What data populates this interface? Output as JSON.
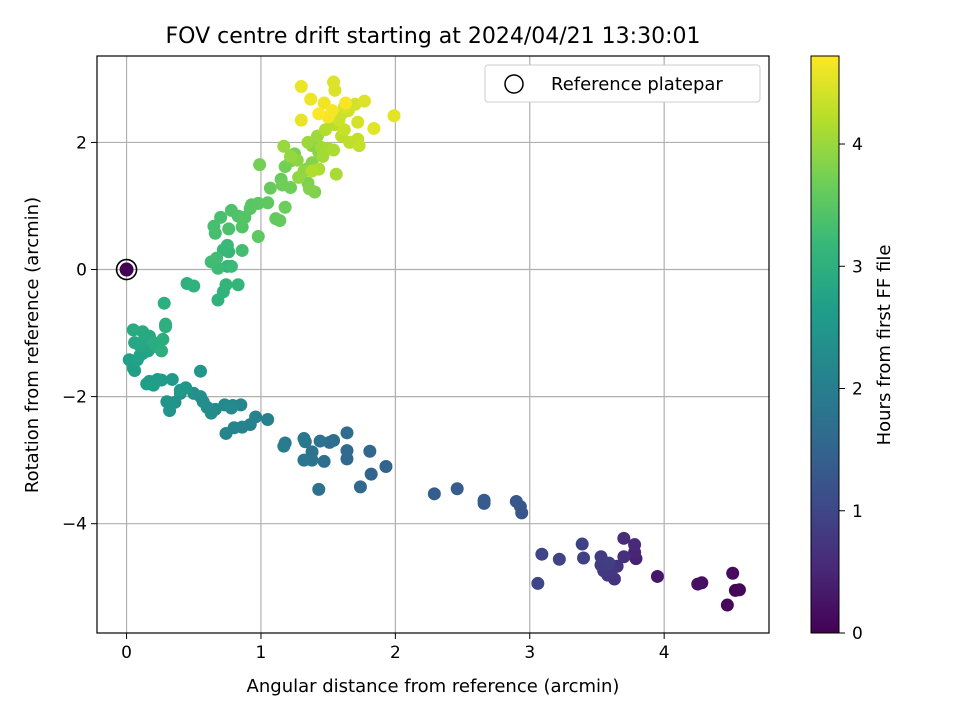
{
  "chart_data": {
    "type": "scatter",
    "title": "FOV centre drift starting at 2024/04/21 13:30:01",
    "xlabel": "Angular distance from reference (arcmin)",
    "ylabel": "Rotation from reference (arcmin)",
    "xlim": [
      -0.22,
      4.78
    ],
    "ylim": [
      -5.72,
      3.36
    ],
    "xticks": [
      0,
      1,
      2,
      3,
      4
    ],
    "xtick_labels": [
      "0",
      "1",
      "2",
      "3",
      "4"
    ],
    "yticks": [
      -4,
      -2,
      0,
      2
    ],
    "ytick_labels": [
      "−4",
      "−2",
      "0",
      "2"
    ],
    "grid": true,
    "legend": {
      "position": "upper right",
      "entries": [
        "Reference platepar"
      ]
    },
    "colorbar": {
      "label": "Hours from first FF file",
      "colormap": "viridis",
      "range": [
        0,
        4.72
      ],
      "ticks": [
        0,
        1,
        2,
        3,
        4
      ],
      "tick_labels": [
        "0",
        "1",
        "2",
        "3",
        "4"
      ]
    },
    "reference_point": {
      "name": "Reference platepar",
      "x": 0,
      "y": 0,
      "hours": 0
    },
    "series": [
      {
        "points": [
          [
            4.53,
            -5.05,
            0.05
          ],
          [
            4.56,
            -5.04,
            0.07
          ],
          [
            4.47,
            -5.28,
            0.1
          ],
          [
            4.51,
            -4.78,
            0.14
          ],
          [
            4.28,
            -4.93,
            0.18
          ],
          [
            4.25,
            -4.95,
            0.22
          ],
          [
            3.95,
            -4.83,
            0.3
          ],
          [
            3.79,
            -4.55,
            0.45
          ],
          [
            3.78,
            -4.45,
            0.5
          ],
          [
            3.78,
            -4.33,
            0.55
          ],
          [
            3.7,
            -4.23,
            0.6
          ],
          [
            3.7,
            -4.52,
            0.65
          ],
          [
            3.63,
            -4.87,
            0.7
          ],
          [
            3.65,
            -4.67,
            0.72
          ],
          [
            3.61,
            -4.72,
            0.75
          ],
          [
            3.58,
            -4.81,
            0.78
          ],
          [
            3.55,
            -4.74,
            0.8
          ],
          [
            3.53,
            -4.65,
            0.82
          ],
          [
            3.53,
            -4.52,
            0.85
          ],
          [
            3.59,
            -4.62,
            0.87
          ],
          [
            3.4,
            -4.54,
            0.9
          ],
          [
            3.39,
            -4.32,
            0.92
          ],
          [
            3.22,
            -4.56,
            0.95
          ],
          [
            3.09,
            -4.48,
            0.98
          ],
          [
            3.06,
            -4.94,
            1.0
          ],
          [
            2.94,
            -3.83,
            1.25
          ],
          [
            2.93,
            -3.73,
            1.27
          ],
          [
            2.9,
            -3.65,
            1.3
          ],
          [
            2.66,
            -3.68,
            1.33
          ],
          [
            2.66,
            -3.63,
            1.35
          ],
          [
            2.46,
            -3.45,
            1.38
          ],
          [
            2.29,
            -3.53,
            1.4
          ],
          [
            1.93,
            -3.1,
            1.5
          ],
          [
            1.82,
            -3.22,
            1.52
          ],
          [
            1.81,
            -2.86,
            1.55
          ],
          [
            1.74,
            -3.42,
            1.57
          ],
          [
            1.64,
            -2.98,
            1.6
          ],
          [
            1.64,
            -2.85,
            1.62
          ],
          [
            1.64,
            -2.57,
            1.65
          ],
          [
            1.54,
            -2.69,
            1.67
          ],
          [
            1.51,
            -2.72,
            1.7
          ],
          [
            1.47,
            -3.02,
            1.72
          ],
          [
            1.43,
            -3.46,
            1.75
          ],
          [
            1.44,
            -2.7,
            1.77
          ],
          [
            1.38,
            -2.87,
            1.8
          ],
          [
            1.38,
            -3.0,
            1.82
          ],
          [
            1.32,
            -3.0,
            1.85
          ],
          [
            1.33,
            -2.71,
            1.87
          ],
          [
            1.32,
            -2.66,
            1.9
          ],
          [
            1.18,
            -2.73,
            1.92
          ],
          [
            1.17,
            -2.78,
            1.95
          ],
          [
            1.05,
            -2.36,
            2.05
          ],
          [
            0.96,
            -2.32,
            2.07
          ],
          [
            0.92,
            -2.44,
            2.1
          ],
          [
            0.86,
            -2.48,
            2.12
          ],
          [
            0.8,
            -2.49,
            2.14
          ],
          [
            0.74,
            -2.58,
            2.16
          ],
          [
            0.85,
            -2.13,
            2.18
          ],
          [
            0.79,
            -2.14,
            2.2
          ],
          [
            0.73,
            -2.13,
            2.22
          ],
          [
            0.78,
            -2.18,
            2.24
          ],
          [
            0.66,
            -2.2,
            2.26
          ],
          [
            0.6,
            -2.17,
            2.28
          ],
          [
            0.63,
            -2.26,
            2.3
          ],
          [
            0.57,
            -2.08,
            2.32
          ],
          [
            0.55,
            -2.0,
            2.34
          ],
          [
            0.5,
            -1.95,
            2.36
          ],
          [
            0.4,
            -1.95,
            2.38
          ],
          [
            0.36,
            -2.09,
            2.4
          ],
          [
            0.3,
            -2.08,
            2.42
          ],
          [
            0.32,
            -2.12,
            2.44
          ],
          [
            0.32,
            -2.22,
            2.46
          ],
          [
            0.55,
            -1.6,
            2.48
          ],
          [
            0.44,
            -1.86,
            2.5
          ],
          [
            0.4,
            -1.9,
            2.52
          ],
          [
            0.34,
            -1.73,
            2.54
          ],
          [
            0.26,
            -1.74,
            2.56
          ],
          [
            0.23,
            -1.73,
            2.58
          ],
          [
            0.17,
            -1.76,
            2.6
          ],
          [
            0.15,
            -1.8,
            2.62
          ],
          [
            0.2,
            -1.82,
            2.64
          ],
          [
            0.05,
            -1.55,
            2.65
          ],
          [
            0.02,
            -1.42,
            2.66
          ],
          [
            0.06,
            -1.59,
            2.67
          ],
          [
            0.08,
            -1.42,
            2.68
          ],
          [
            0.1,
            -1.35,
            2.7
          ],
          [
            0.12,
            -1.32,
            2.72
          ],
          [
            0.16,
            -1.28,
            2.74
          ],
          [
            0.18,
            -1.18,
            2.76
          ],
          [
            0.1,
            -1.2,
            2.78
          ],
          [
            0.06,
            -1.15,
            2.8
          ],
          [
            0.13,
            -1.12,
            2.82
          ],
          [
            0.17,
            -1.05,
            2.84
          ],
          [
            0.12,
            -0.98,
            2.86
          ],
          [
            0.05,
            -0.95,
            2.88
          ],
          [
            0.2,
            -1.15,
            2.9
          ],
          [
            0.23,
            -1.22,
            2.92
          ],
          [
            0.27,
            -1.1,
            2.94
          ],
          [
            0.26,
            -1.28,
            2.95
          ],
          [
            0.29,
            -0.9,
            2.96
          ],
          [
            0.29,
            -0.86,
            2.97
          ],
          [
            0.28,
            -0.53,
            2.98
          ],
          [
            0.45,
            -0.22,
            3.0
          ],
          [
            0.5,
            -0.26,
            3.02
          ],
          [
            0.68,
            -0.48,
            3.04
          ],
          [
            0.72,
            -0.35,
            3.06
          ],
          [
            0.74,
            -0.24,
            3.08
          ],
          [
            0.83,
            -0.24,
            3.1
          ],
          [
            0.75,
            0.05,
            3.12
          ],
          [
            0.76,
            0.28,
            3.14
          ],
          [
            0.72,
            0.31,
            3.16
          ],
          [
            0.75,
            0.38,
            3.18
          ],
          [
            0.78,
            0.05,
            3.2
          ],
          [
            0.68,
            0.02,
            3.22
          ],
          [
            0.63,
            0.12,
            3.24
          ],
          [
            0.67,
            0.18,
            3.26
          ],
          [
            0.86,
            0.3,
            3.28
          ],
          [
            0.66,
            0.57,
            3.3
          ],
          [
            0.65,
            0.68,
            3.32
          ],
          [
            0.7,
            0.82,
            3.34
          ],
          [
            0.76,
            0.64,
            3.36
          ],
          [
            0.78,
            0.93,
            3.38
          ],
          [
            0.83,
            0.84,
            3.4
          ],
          [
            0.86,
            0.67,
            3.42
          ],
          [
            0.88,
            0.82,
            3.44
          ],
          [
            0.92,
            0.96,
            3.46
          ],
          [
            0.93,
            1.02,
            3.48
          ],
          [
            0.98,
            1.04,
            3.5
          ],
          [
            0.98,
            0.52,
            3.52
          ],
          [
            1.05,
            1.05,
            3.54
          ],
          [
            1.11,
            0.8,
            3.56
          ],
          [
            1.14,
            0.77,
            3.58
          ],
          [
            1.07,
            1.28,
            3.6
          ],
          [
            1.15,
            1.42,
            3.62
          ],
          [
            1.18,
            0.98,
            3.64
          ],
          [
            1.22,
            1.29,
            3.66
          ],
          [
            1.16,
            1.33,
            3.68
          ],
          [
            1.18,
            1.62,
            3.7
          ],
          [
            1.22,
            1.71,
            3.72
          ],
          [
            1.25,
            1.82,
            3.74
          ],
          [
            1.34,
            1.58,
            3.76
          ],
          [
            1.35,
            1.36,
            3.78
          ],
          [
            1.4,
            1.22,
            3.8
          ],
          [
            1.36,
            1.27,
            3.82
          ],
          [
            1.38,
            1.68,
            3.84
          ],
          [
            1.43,
            1.85,
            3.86
          ],
          [
            1.38,
            1.95,
            3.88
          ],
          [
            1.27,
            1.72,
            3.9
          ],
          [
            1.32,
            1.55,
            3.92
          ],
          [
            1.28,
            1.45,
            3.94
          ],
          [
            1.22,
            1.78,
            3.96
          ],
          [
            1.17,
            1.94,
            3.98
          ],
          [
            0.99,
            1.65,
            3.72
          ],
          [
            1.35,
            2.0,
            4.0
          ],
          [
            1.42,
            2.1,
            4.02
          ],
          [
            1.45,
            1.92,
            4.04
          ],
          [
            1.46,
            1.78,
            4.06
          ],
          [
            1.5,
            1.9,
            4.08
          ],
          [
            1.56,
            1.5,
            4.1
          ],
          [
            1.54,
            1.88,
            4.12
          ],
          [
            1.43,
            1.58,
            4.14
          ],
          [
            1.38,
            1.55,
            4.16
          ],
          [
            1.48,
            2.2,
            4.18
          ],
          [
            1.52,
            2.35,
            4.2
          ],
          [
            1.55,
            2.28,
            4.22
          ],
          [
            1.6,
            2.1,
            4.24
          ],
          [
            1.66,
            2.0,
            4.26
          ],
          [
            1.72,
            2.05,
            4.28
          ],
          [
            1.73,
            1.95,
            4.3
          ],
          [
            1.6,
            2.45,
            4.32
          ],
          [
            1.62,
            2.2,
            4.34
          ],
          [
            1.58,
            2.35,
            4.36
          ],
          [
            1.65,
            2.5,
            4.38
          ],
          [
            1.7,
            2.6,
            4.4
          ],
          [
            1.72,
            2.32,
            4.42
          ],
          [
            1.62,
            2.55,
            4.44
          ],
          [
            1.55,
            2.82,
            4.46
          ],
          [
            1.54,
            2.95,
            4.48
          ],
          [
            1.77,
            2.65,
            4.5
          ],
          [
            1.84,
            2.22,
            4.52
          ],
          [
            1.99,
            2.42,
            4.54
          ],
          [
            1.3,
            2.35,
            4.56
          ],
          [
            1.3,
            2.88,
            4.58
          ],
          [
            1.37,
            2.68,
            4.6
          ],
          [
            1.47,
            2.62,
            4.62
          ],
          [
            1.5,
            2.4,
            4.64
          ],
          [
            1.53,
            2.5,
            4.66
          ],
          [
            1.63,
            2.62,
            4.68
          ],
          [
            1.43,
            2.45,
            4.7
          ]
        ]
      }
    ]
  }
}
